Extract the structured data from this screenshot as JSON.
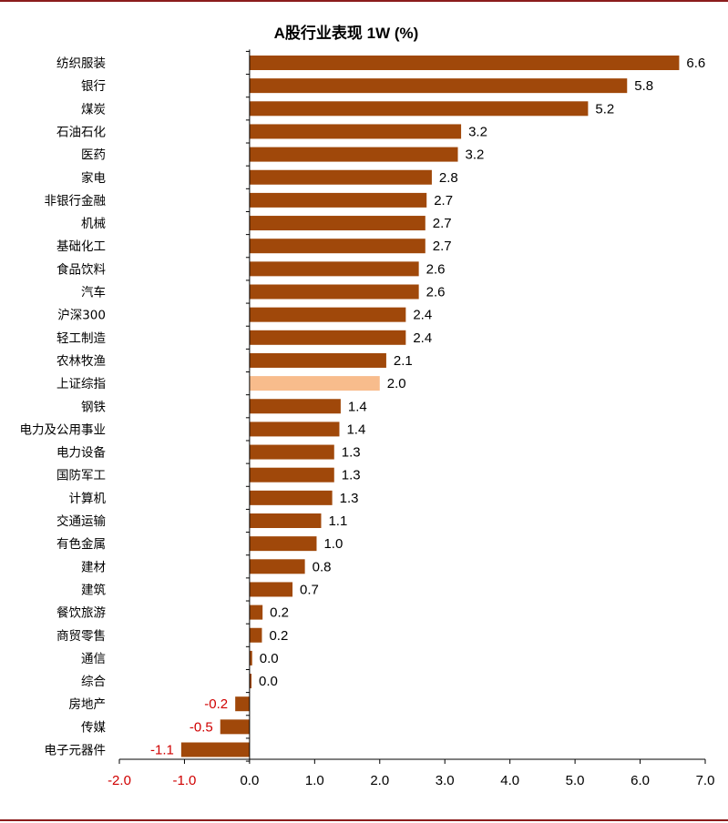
{
  "chart_data": {
    "type": "bar",
    "orientation": "horizontal",
    "title": "A股行业表现 1W (%)",
    "categories": [
      "纺织服装",
      "银行",
      "煤炭",
      "石油石化",
      "医药",
      "家电",
      "非银行金融",
      "机械",
      "基础化工",
      "食品饮料",
      "汽车",
      "沪深300",
      "轻工制造",
      "农林牧渔",
      "上证综指",
      "钢铁",
      "电力及公用事业",
      "电力设备",
      "国防军工",
      "计算机",
      "交通运输",
      "有色金属",
      "建材",
      "建筑",
      "餐饮旅游",
      "商贸零售",
      "通信",
      "综合",
      "房地产",
      "传媒",
      "电子元器件"
    ],
    "values": [
      6.6,
      5.8,
      5.2,
      3.25,
      3.2,
      2.8,
      2.72,
      2.7,
      2.7,
      2.6,
      2.6,
      2.4,
      2.4,
      2.1,
      2.0,
      1.4,
      1.38,
      1.3,
      1.3,
      1.27,
      1.1,
      1.03,
      0.85,
      0.66,
      0.2,
      0.19,
      0.04,
      0.03,
      -0.22,
      -0.45,
      -1.05
    ],
    "value_labels": [
      "6.6",
      "5.8",
      "5.2",
      "3.2",
      "3.2",
      "2.8",
      "2.7",
      "2.7",
      "2.7",
      "2.6",
      "2.6",
      "2.4",
      "2.4",
      "2.1",
      "2.0",
      "1.4",
      "1.4",
      "1.3",
      "1.3",
      "1.3",
      "1.1",
      "1.0",
      "0.8",
      "0.7",
      "0.2",
      "0.2",
      "0.0",
      "0.0",
      "-0.2",
      "-0.5",
      "-1.1"
    ],
    "highlight_category": "上证综指",
    "x_ticks": [
      "-2.0",
      "-1.0",
      "0.0",
      "1.0",
      "2.0",
      "3.0",
      "4.0",
      "5.0",
      "6.0",
      "7.0"
    ],
    "xlim": [
      -2,
      7
    ],
    "colors": {
      "bar": "#a0480a",
      "highlight": "#f8bc8c",
      "negative_text": "#d00000",
      "axis": "#000000",
      "frame": "#8b1c1c"
    }
  }
}
